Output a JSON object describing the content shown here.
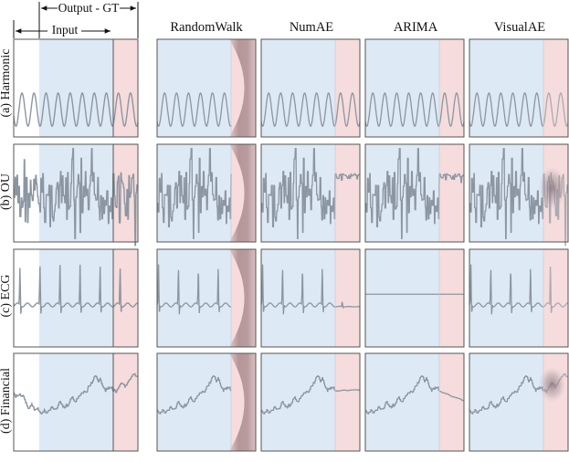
{
  "figure": {
    "annotations": {
      "output_gt": "Output - GT",
      "input": "Input"
    },
    "columns": [
      "RandomWalk",
      "NumAE",
      "ARIMA",
      "VisualAE"
    ],
    "rows": [
      {
        "key": "harmonic",
        "label": "(a) Harmonic"
      },
      {
        "key": "ou",
        "label": "(b) OU"
      },
      {
        "key": "ecg",
        "label": "(c) ECG"
      },
      {
        "key": "financial",
        "label": "(d) Financial"
      }
    ],
    "colors": {
      "input_region": "#dde9f5",
      "output_region": "#f6dcdc",
      "signal": "#8c96a2",
      "frame": "#555555",
      "randomwalk_blur": "#b89a9d"
    }
  }
}
